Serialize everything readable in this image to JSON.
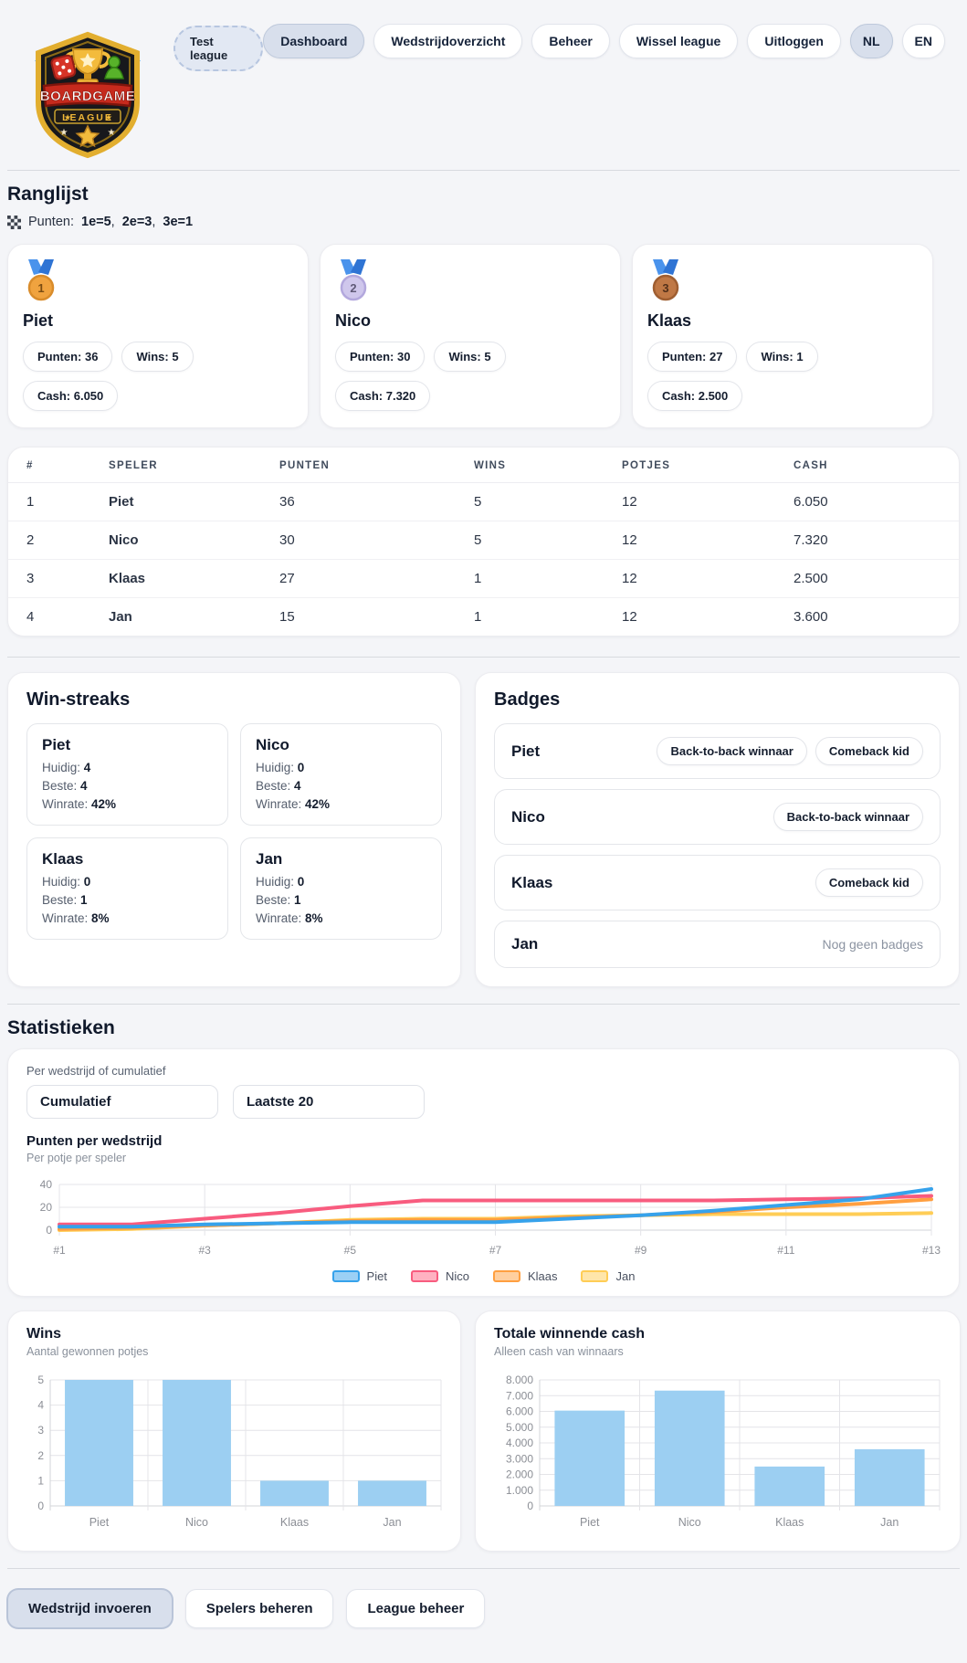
{
  "header": {
    "league_badge": "Test league",
    "logo": {
      "line1": "BOARDGAME",
      "line2": "LEAGUE"
    },
    "nav": [
      {
        "label": "Dashboard",
        "active": true
      },
      {
        "label": "Wedstrijdoverzicht",
        "active": false
      },
      {
        "label": "Beheer",
        "active": false
      },
      {
        "label": "Wissel league",
        "active": false
      },
      {
        "label": "Uitloggen",
        "active": false
      }
    ],
    "lang": [
      {
        "label": "NL",
        "active": true
      },
      {
        "label": "EN",
        "active": false
      }
    ]
  },
  "ranglijst": {
    "title": "Ranglijst",
    "points_legend": {
      "label": "Punten:",
      "rules": [
        "1e=5",
        "2e=3",
        "3e=1"
      ],
      "sep": ", "
    },
    "podium": [
      {
        "rank": "1",
        "name": "Piet",
        "stats": [
          "Punten: 36",
          "Wins: 5",
          "Cash: 6.050"
        ]
      },
      {
        "rank": "2",
        "name": "Nico",
        "stats": [
          "Punten: 30",
          "Wins: 5",
          "Cash: 7.320"
        ]
      },
      {
        "rank": "3",
        "name": "Klaas",
        "stats": [
          "Punten: 27",
          "Wins: 1",
          "Cash: 2.500"
        ]
      }
    ],
    "table": {
      "headers": [
        "#",
        "SPELER",
        "PUNTEN",
        "WINS",
        "POTJES",
        "CASH"
      ],
      "rows": [
        [
          "1",
          "Piet",
          "36",
          "5",
          "12",
          "6.050"
        ],
        [
          "2",
          "Nico",
          "30",
          "5",
          "12",
          "7.320"
        ],
        [
          "3",
          "Klaas",
          "27",
          "1",
          "12",
          "2.500"
        ],
        [
          "4",
          "Jan",
          "15",
          "1",
          "12",
          "3.600"
        ]
      ]
    }
  },
  "win_streaks": {
    "title": "Win-streaks",
    "players": [
      {
        "name": "Piet",
        "stats": [
          {
            "label": "Huidig:",
            "value": "4"
          },
          {
            "label": "Beste:",
            "value": "4"
          },
          {
            "label": "Winrate:",
            "value": "42%"
          }
        ]
      },
      {
        "name": "Nico",
        "stats": [
          {
            "label": "Huidig:",
            "value": "0"
          },
          {
            "label": "Beste:",
            "value": "4"
          },
          {
            "label": "Winrate:",
            "value": "42%"
          }
        ]
      },
      {
        "name": "Klaas",
        "stats": [
          {
            "label": "Huidig:",
            "value": "0"
          },
          {
            "label": "Beste:",
            "value": "1"
          },
          {
            "label": "Winrate:",
            "value": "8%"
          }
        ]
      },
      {
        "name": "Jan",
        "stats": [
          {
            "label": "Huidig:",
            "value": "0"
          },
          {
            "label": "Beste:",
            "value": "1"
          },
          {
            "label": "Winrate:",
            "value": "8%"
          }
        ]
      }
    ]
  },
  "badges": {
    "title": "Badges",
    "rows": [
      {
        "name": "Piet",
        "badges": [
          "Back-to-back winnaar",
          "Comeback kid"
        ],
        "empty": ""
      },
      {
        "name": "Nico",
        "badges": [
          "Back-to-back winnaar"
        ],
        "empty": ""
      },
      {
        "name": "Klaas",
        "badges": [
          "Comeback kid"
        ],
        "empty": ""
      },
      {
        "name": "Jan",
        "badges": [],
        "empty": "Nog geen badges"
      }
    ]
  },
  "statistieken": {
    "title": "Statistieken",
    "filter_label": "Per wedstrijd of cumulatief",
    "selects": [
      "Cumulatief",
      "Laatste 20"
    ]
  },
  "chart_data": [
    {
      "type": "line",
      "title": "Punten per wedstrijd",
      "subtitle": "Per potje per speler",
      "x": [
        "#1",
        "#2",
        "#3",
        "#4",
        "#5",
        "#6",
        "#7",
        "#8",
        "#9",
        "#10",
        "#11",
        "#12",
        "#13"
      ],
      "x_ticks_shown": [
        "#1",
        "#3",
        "#5",
        "#7",
        "#9",
        "#11",
        "#13"
      ],
      "ylim": [
        0,
        40
      ],
      "yticks": [
        0,
        20,
        40
      ],
      "grid": true,
      "legend_position": "bottom",
      "series": [
        {
          "name": "Piet",
          "color": "#36A2EB",
          "fill": "#9BD0F5",
          "values": [
            3,
            3,
            5,
            6,
            7,
            7,
            7,
            10,
            13,
            17,
            22,
            27,
            36
          ]
        },
        {
          "name": "Nico",
          "color": "#F85C7F",
          "fill": "#FFB1C1",
          "values": [
            5,
            5,
            10,
            15,
            21,
            26,
            26,
            26,
            26,
            26,
            27,
            28,
            30
          ]
        },
        {
          "name": "Klaas",
          "color": "#FF9F40",
          "fill": "#FFCF9F",
          "values": [
            1,
            2,
            4,
            6,
            8,
            9,
            9,
            11,
            13,
            16,
            20,
            23,
            27
          ]
        },
        {
          "name": "Jan",
          "color": "#FFCD56",
          "fill": "#FFE6AA",
          "values": [
            0,
            1,
            4,
            6,
            9,
            10,
            10,
            12,
            13,
            14,
            14,
            14,
            15
          ]
        }
      ]
    },
    {
      "type": "bar",
      "title": "Wins",
      "subtitle": "Aantal gewonnen potjes",
      "categories": [
        "Piet",
        "Nico",
        "Klaas",
        "Jan"
      ],
      "values": [
        5,
        5,
        1,
        1
      ],
      "ylim": [
        0,
        5
      ],
      "yticks": [
        0,
        1,
        2,
        3,
        4,
        5
      ],
      "ytick_labels": [
        "0",
        "1",
        "2",
        "3",
        "4",
        "5"
      ],
      "bar_color": "#9CCFF2"
    },
    {
      "type": "bar",
      "title": "Totale winnende cash",
      "subtitle": "Alleen cash van winnaars",
      "categories": [
        "Piet",
        "Nico",
        "Klaas",
        "Jan"
      ],
      "values": [
        6050,
        7320,
        2500,
        3600
      ],
      "ylim": [
        0,
        8000
      ],
      "yticks": [
        0,
        1000,
        2000,
        3000,
        4000,
        5000,
        6000,
        7000,
        8000
      ],
      "ytick_labels": [
        "0",
        "1.000",
        "2.000",
        "3.000",
        "4.000",
        "5.000",
        "6.000",
        "7.000",
        "8.000"
      ],
      "bar_color": "#9CCFF2"
    }
  ],
  "footer": {
    "buttons": [
      {
        "label": "Wedstrijd invoeren",
        "active": true
      },
      {
        "label": "Spelers beheren",
        "active": false
      },
      {
        "label": "League beheer",
        "active": false
      }
    ]
  }
}
